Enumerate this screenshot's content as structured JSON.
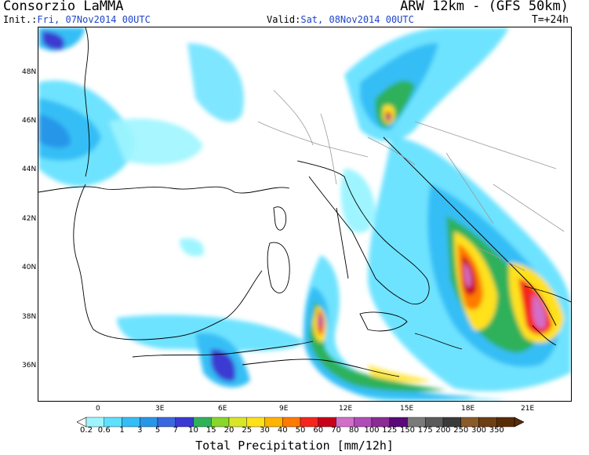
{
  "header": {
    "org": "Consorzio LaMMA",
    "model": "ARW 12km - (GFS 50km)",
    "init_label": "Init.:",
    "init_value": "Fri, 07Nov2014 00UTC",
    "valid_label": "Valid:",
    "valid_value": "Sat, 08Nov2014 00UTC",
    "lead_time": "T=+24h"
  },
  "map": {
    "lat_labels": [
      "48N",
      "46N",
      "44N",
      "42N",
      "40N",
      "38N",
      "36N"
    ],
    "lon_labels": [
      "0",
      "3E",
      "6E",
      "9E",
      "12E",
      "15E",
      "18E",
      "21E"
    ]
  },
  "colorbar": {
    "values": [
      "0.2",
      "0.6",
      "1",
      "3",
      "5",
      "7",
      "10",
      "15",
      "20",
      "25",
      "30",
      "40",
      "50",
      "60",
      "70",
      "80",
      "100",
      "125",
      "150",
      "175",
      "200",
      "250",
      "300",
      "350"
    ],
    "colors": [
      "#9ff5ff",
      "#5ee0ff",
      "#34bef5",
      "#2896e8",
      "#3b68e0",
      "#3a3ad2",
      "#2fb15a",
      "#8ad62c",
      "#d9e528",
      "#ffe11a",
      "#ffb400",
      "#ff7a00",
      "#f5251e",
      "#c8001a",
      "#d26ec8",
      "#b04cb8",
      "#8c2a96",
      "#5a0a78",
      "#7a7a7a",
      "#5a5a5a",
      "#3a3a3a",
      "#8a5a28",
      "#6e3e14",
      "#5a2c06"
    ],
    "label": "Total Precipitation [mm/12h]"
  }
}
